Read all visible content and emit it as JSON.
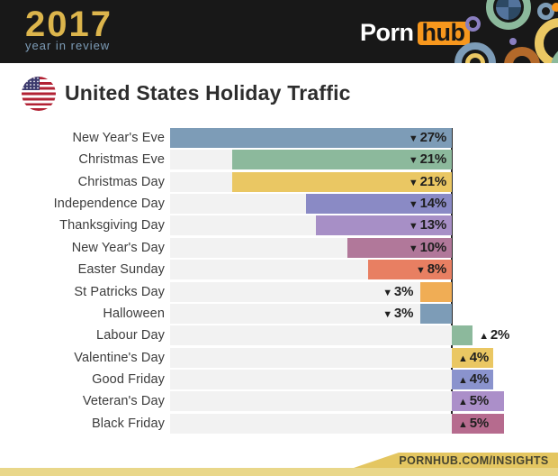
{
  "header": {
    "logo": {
      "year": "2017",
      "tagline": "year in review"
    },
    "brand": {
      "word1": "Porn",
      "word2": "hub"
    },
    "colors": {
      "bg": "#181818",
      "year_gold": "#dcb54c",
      "tagline_blue": "#7d9cb7",
      "brand_orange": "#f7971d"
    }
  },
  "title": {
    "heading": "United States Holiday Traffic",
    "flag": "us-flag-icon"
  },
  "chart_data": {
    "type": "bar",
    "orientation": "horizontal",
    "title": "United States Holiday Traffic",
    "unit": "%",
    "xlim": [
      -27,
      5
    ],
    "zero_axis_line": true,
    "grid": false,
    "legend": false,
    "categories": [
      "New Year's Eve",
      "Christmas Eve",
      "Christmas Day",
      "Independence Day",
      "Thanksgiving Day",
      "New Year's Day",
      "Easter Sunday",
      "St Patricks Day",
      "Halloween",
      "Labour Day",
      "Valentine's Day",
      "Good Friday",
      "Veteran's Day",
      "Black Friday"
    ],
    "values": [
      -27,
      -21,
      -21,
      -14,
      -13,
      -10,
      -8,
      -3,
      -3,
      2,
      4,
      4,
      5,
      5
    ],
    "rows": [
      {
        "label": "New Year's Eve",
        "display": "▼27%",
        "value": -27,
        "color": "#7d9cb7"
      },
      {
        "label": "Christmas Eve",
        "display": "▼21%",
        "value": -21,
        "color": "#8cb99c"
      },
      {
        "label": "Christmas Day",
        "display": "▼21%",
        "value": -21,
        "color": "#eac763"
      },
      {
        "label": "Independence Day",
        "display": "▼14%",
        "value": -14,
        "color": "#8a8ac5"
      },
      {
        "label": "Thanksgiving Day",
        "display": "▼13%",
        "value": -13,
        "color": "#a78fc6"
      },
      {
        "label": "New Year's Day",
        "display": "▼10%",
        "value": -10,
        "color": "#b1789a"
      },
      {
        "label": "Easter Sunday",
        "display": "▼8%",
        "value": -8,
        "color": "#e87f62"
      },
      {
        "label": "St Patricks Day",
        "display": "▼3%",
        "value": -3,
        "color": "#f0ad55"
      },
      {
        "label": "Halloween",
        "display": "▼3%",
        "value": -3,
        "color": "#7d9cb7"
      },
      {
        "label": "Labour Day",
        "display": "▲2%",
        "value": 2,
        "color": "#8cb99c"
      },
      {
        "label": "Valentine's Day",
        "display": "▲4%",
        "value": 4,
        "color": "#eac763"
      },
      {
        "label": "Good Friday",
        "display": "▲4%",
        "value": 4,
        "color": "#8a93cd"
      },
      {
        "label": "Veteran's Day",
        "display": "▲5%",
        "value": 5,
        "color": "#ab8fc9"
      },
      {
        "label": "Black Friday",
        "display": "▲5%",
        "value": 5,
        "color": "#b66b8e"
      }
    ],
    "track_color": "#f2f2f2"
  },
  "footer": {
    "link_text": "PORNHUB.COM/INSIGHTS"
  }
}
